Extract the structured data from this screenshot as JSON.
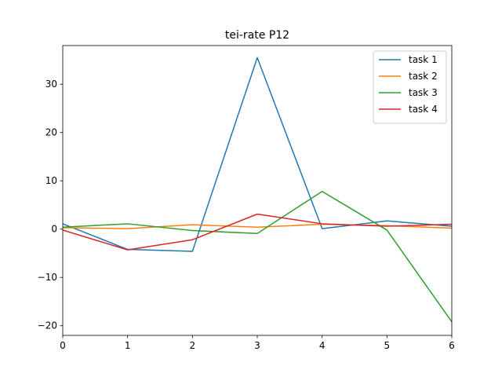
{
  "chart_data": {
    "type": "line",
    "title": "tei-rate P12",
    "xlabel": "",
    "ylabel": "",
    "xlim": [
      0,
      6
    ],
    "ylim": [
      -22,
      38
    ],
    "xticks": [
      0,
      1,
      2,
      3,
      4,
      5,
      6
    ],
    "yticks": [
      -20,
      -10,
      0,
      10,
      20,
      30
    ],
    "grid": false,
    "legend_position": "top-right",
    "x": [
      0,
      1,
      2,
      3,
      4,
      5,
      6
    ],
    "series": [
      {
        "name": "task 1",
        "color": "#1f77b4",
        "values": [
          1.1,
          -4.2,
          -4.6,
          35.5,
          0.1,
          1.7,
          0.6
        ]
      },
      {
        "name": "task 2",
        "color": "#ff7f0e",
        "values": [
          0.3,
          0.1,
          0.9,
          0.4,
          1.0,
          0.7,
          0.2
        ]
      },
      {
        "name": "task 3",
        "color": "#2ca02c",
        "values": [
          0.4,
          1.1,
          -0.3,
          -0.9,
          7.8,
          -0.2,
          -19.2
        ]
      },
      {
        "name": "task 4",
        "color": "#d62728",
        "values": [
          -0.2,
          -4.3,
          -2.2,
          3.1,
          1.1,
          0.6,
          1.0
        ]
      }
    ]
  }
}
